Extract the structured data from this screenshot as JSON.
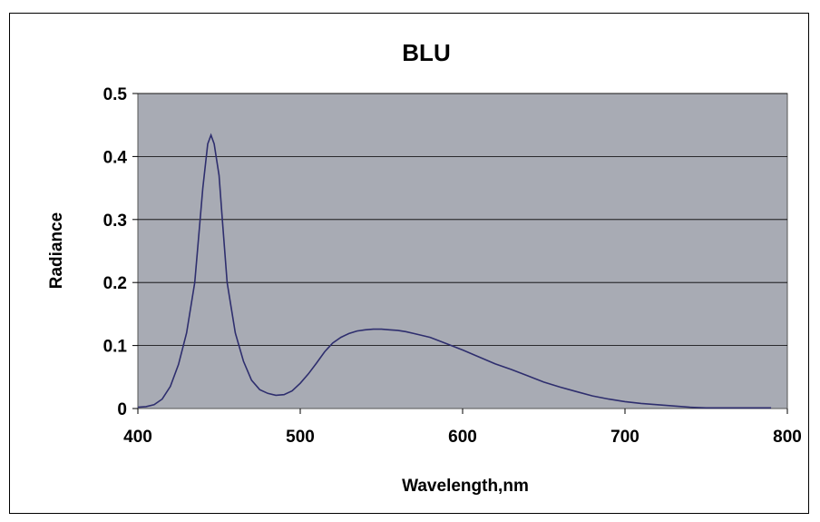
{
  "chart_data": {
    "type": "line",
    "title": "BLU",
    "xlabel": "Wavelength,nm",
    "ylabel": "Radiance",
    "xlim": [
      400,
      800
    ],
    "ylim": [
      0,
      0.5
    ],
    "x_ticks": [
      "400",
      "500",
      "600",
      "700",
      "800"
    ],
    "y_ticks": [
      "0",
      "0.1",
      "0.2",
      "0.3",
      "0.4",
      "0.5"
    ],
    "grid": "horizontal",
    "legend": "none",
    "colors": {
      "plot_bg": "#a8abb4",
      "line": "#2e2e6e",
      "grid": "#000000"
    },
    "series": [
      {
        "x": [
          400,
          405,
          410,
          415,
          420,
          425,
          430,
          435,
          440,
          443,
          445,
          447,
          450,
          452,
          455,
          460,
          465,
          470,
          475,
          480,
          485,
          490,
          495,
          500,
          505,
          510,
          515,
          520,
          525,
          530,
          535,
          540,
          545,
          550,
          555,
          560,
          565,
          570,
          575,
          580,
          590,
          600,
          610,
          620,
          630,
          640,
          650,
          660,
          670,
          680,
          690,
          700,
          710,
          720,
          730,
          740,
          750,
          760,
          770,
          780,
          790
        ],
        "y": [
          0.002,
          0.003,
          0.006,
          0.015,
          0.035,
          0.07,
          0.12,
          0.2,
          0.35,
          0.42,
          0.434,
          0.42,
          0.37,
          0.3,
          0.2,
          0.12,
          0.075,
          0.045,
          0.03,
          0.024,
          0.021,
          0.022,
          0.028,
          0.04,
          0.055,
          0.072,
          0.09,
          0.104,
          0.113,
          0.119,
          0.123,
          0.125,
          0.126,
          0.126,
          0.125,
          0.124,
          0.122,
          0.119,
          0.116,
          0.113,
          0.103,
          0.093,
          0.082,
          0.071,
          0.062,
          0.052,
          0.042,
          0.034,
          0.027,
          0.02,
          0.015,
          0.011,
          0.008,
          0.006,
          0.004,
          0.002,
          0.001,
          0.001,
          0.001,
          0.001,
          0.001
        ]
      }
    ]
  }
}
